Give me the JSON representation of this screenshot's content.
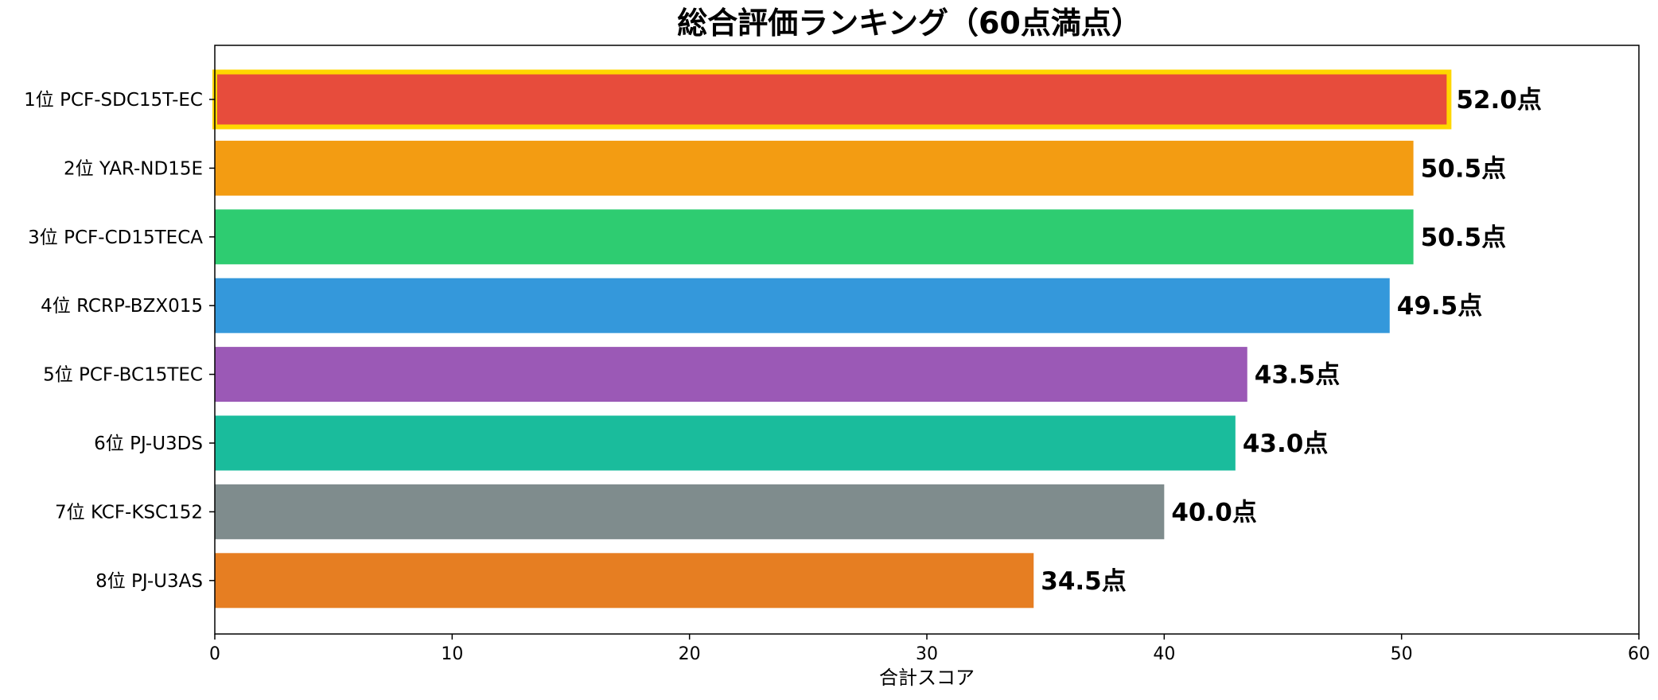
{
  "chart_data": {
    "type": "bar",
    "orientation": "horizontal",
    "title": "総合評価ランキング（60点満点）",
    "xlabel": "合計スコア",
    "ylabel": "",
    "xlim": [
      0,
      60
    ],
    "xticks": [
      0,
      10,
      20,
      30,
      40,
      50,
      60
    ],
    "grid": false,
    "legend": "none",
    "categories": [
      "1位 PCF-SDC15T-EC",
      "2位 YAR-ND15E",
      "3位 PCF-CD15TECA",
      "4位 RCRP-BZX015",
      "5位 PCF-BC15TEC",
      "6位 PJ-U3DS",
      "7位 KCF-KSC152",
      "8位 PJ-U3AS"
    ],
    "values": [
      52.0,
      50.5,
      50.5,
      49.5,
      43.5,
      43.0,
      40.0,
      34.5
    ],
    "value_labels": [
      "52.0点",
      "50.5点",
      "50.5点",
      "49.5点",
      "43.5点",
      "43.0点",
      "40.0点",
      "34.5点"
    ],
    "colors": [
      "#e74c3c",
      "#f39c12",
      "#2ecc71",
      "#3498db",
      "#9b59b6",
      "#1abc9c",
      "#7f8c8d",
      "#e67e22"
    ],
    "highlight_index": 0,
    "highlight_color": "#ffd700"
  }
}
